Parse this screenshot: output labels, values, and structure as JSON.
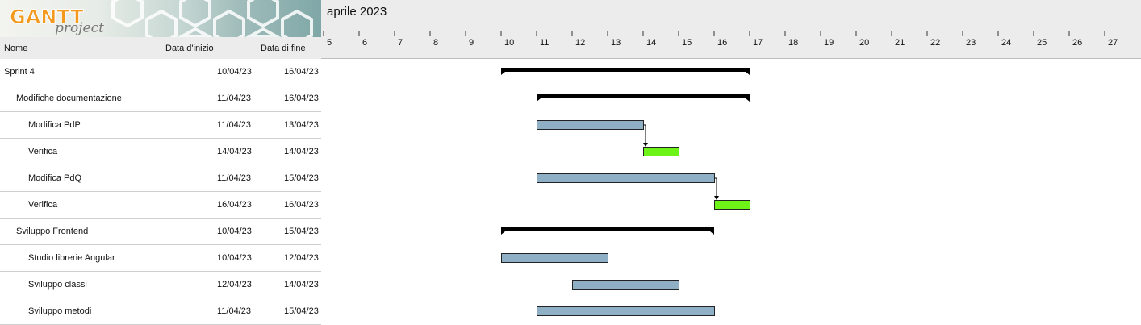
{
  "app": {
    "logo_text": "GANTT",
    "logo_sub": "project"
  },
  "timeline": {
    "month_label": "aprile 2023"
  },
  "columns": {
    "name": "Nome",
    "start": "Data d'inizio",
    "end": "Data di fine"
  },
  "colors": {
    "task_bar": "#8eafc5",
    "verify_bar": "#6ef318",
    "summary_bar": "#000000",
    "header_bg": "#ececec"
  },
  "chart_data": {
    "type": "gantt",
    "x_axis": {
      "month": "aprile 2023",
      "day_from": 5,
      "day_to": 27,
      "tick_labels": [
        "5",
        "6",
        "7",
        "8",
        "9",
        "10",
        "11",
        "12",
        "13",
        "14",
        "15",
        "16",
        "17",
        "18",
        "19",
        "20",
        "21",
        "22",
        "23",
        "24",
        "25",
        "26",
        "27"
      ]
    },
    "tasks": [
      {
        "name": "Sprint 4",
        "start": "10/04/23",
        "end": "16/04/23",
        "level": 0,
        "kind": "summary"
      },
      {
        "name": "Modifiche documentazione",
        "start": "11/04/23",
        "end": "16/04/23",
        "level": 1,
        "kind": "summary"
      },
      {
        "name": "Modifica PdP",
        "start": "11/04/23",
        "end": "13/04/23",
        "level": 2,
        "kind": "task"
      },
      {
        "name": "Verifica",
        "start": "14/04/23",
        "end": "14/04/23",
        "level": 2,
        "kind": "verify"
      },
      {
        "name": "Modifica PdQ",
        "start": "11/04/23",
        "end": "15/04/23",
        "level": 2,
        "kind": "task"
      },
      {
        "name": "Verifica",
        "start": "16/04/23",
        "end": "16/04/23",
        "level": 2,
        "kind": "verify"
      },
      {
        "name": "Sviluppo Frontend",
        "start": "10/04/23",
        "end": "15/04/23",
        "level": 1,
        "kind": "summary"
      },
      {
        "name": "Studio librerie Angular",
        "start": "10/04/23",
        "end": "12/04/23",
        "level": 2,
        "kind": "task"
      },
      {
        "name": "Sviluppo classi",
        "start": "12/04/23",
        "end": "14/04/23",
        "level": 2,
        "kind": "task"
      },
      {
        "name": "Sviluppo metodi",
        "start": "11/04/23",
        "end": "15/04/23",
        "level": 2,
        "kind": "task"
      }
    ],
    "dependencies": [
      {
        "from": 2,
        "to": 3
      },
      {
        "from": 4,
        "to": 5
      }
    ]
  }
}
